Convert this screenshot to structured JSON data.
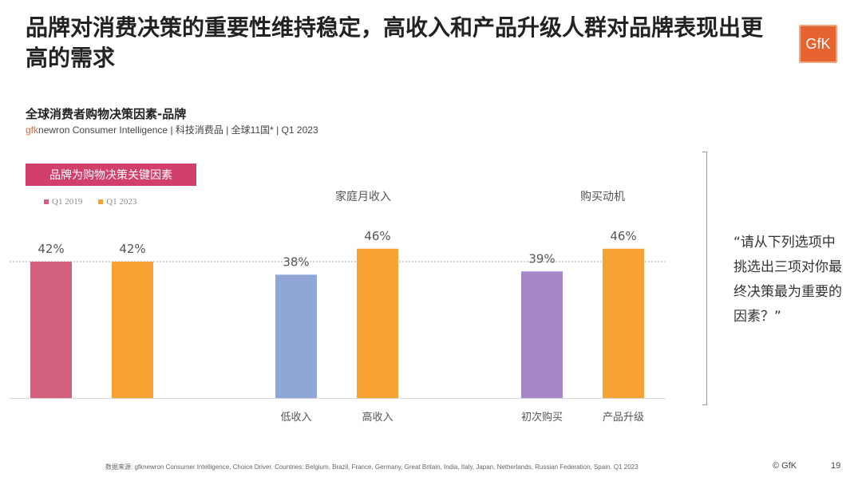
{
  "header": {
    "title": "品牌对消费决策的重要性维持稳定，高收入和产品升级人群对品牌表现出更高的需求",
    "logo_text": "GfK",
    "logo_color": "#e5642f"
  },
  "subheader": {
    "subtitle": "全球消费者购物决策因素-品牌",
    "source_prefix": "gfk",
    "source_rest": "newron Consumer Intelligence | 科技消费品 | 全球11国* | Q1 2023"
  },
  "badge": {
    "text": "品牌为购物决策关键因素",
    "color": "#d33f6b"
  },
  "legend": {
    "items": [
      {
        "label": "Q1 2019",
        "color": "#d4607f"
      },
      {
        "label": "Q1 2023",
        "color": "#f9a234"
      }
    ]
  },
  "groups": {
    "income_label": "家庭月收入",
    "motive_label": "购买动机"
  },
  "chart_data": {
    "type": "bar",
    "categories": [
      "Q1 2019",
      "Q1 2023",
      "低收入",
      "高收入",
      "初次购买",
      "产品升级"
    ],
    "values": [
      42,
      42,
      38,
      46,
      39,
      46
    ],
    "value_labels": [
      "42%",
      "42%",
      "38%",
      "46%",
      "39%",
      "46%"
    ],
    "category_labels_shown": [
      "",
      "",
      "低收入",
      "高收入",
      "初次购买",
      "产品升级"
    ],
    "colors": [
      "#d4607f",
      "#f9a234",
      "#8fa6d6",
      "#f9a234",
      "#a985c9",
      "#f9a234"
    ],
    "reference_line": 42,
    "ylim": [
      0,
      50
    ],
    "title": "",
    "xlabel": "",
    "ylabel": ""
  },
  "quote": {
    "text": "“请从下列选项中挑选出三项对你最终决策最为重要的因素？”"
  },
  "footer": {
    "source": "数据来源: gfknewron Consumer Intelligence, Choice Driver. Countries: Belgium, Brazil, France, Germany, Great Britain, India, Italy, Japan, Netherlands, Russian Federation, Spain. Q1 2023",
    "copyright": "© GfK",
    "page": "19"
  }
}
